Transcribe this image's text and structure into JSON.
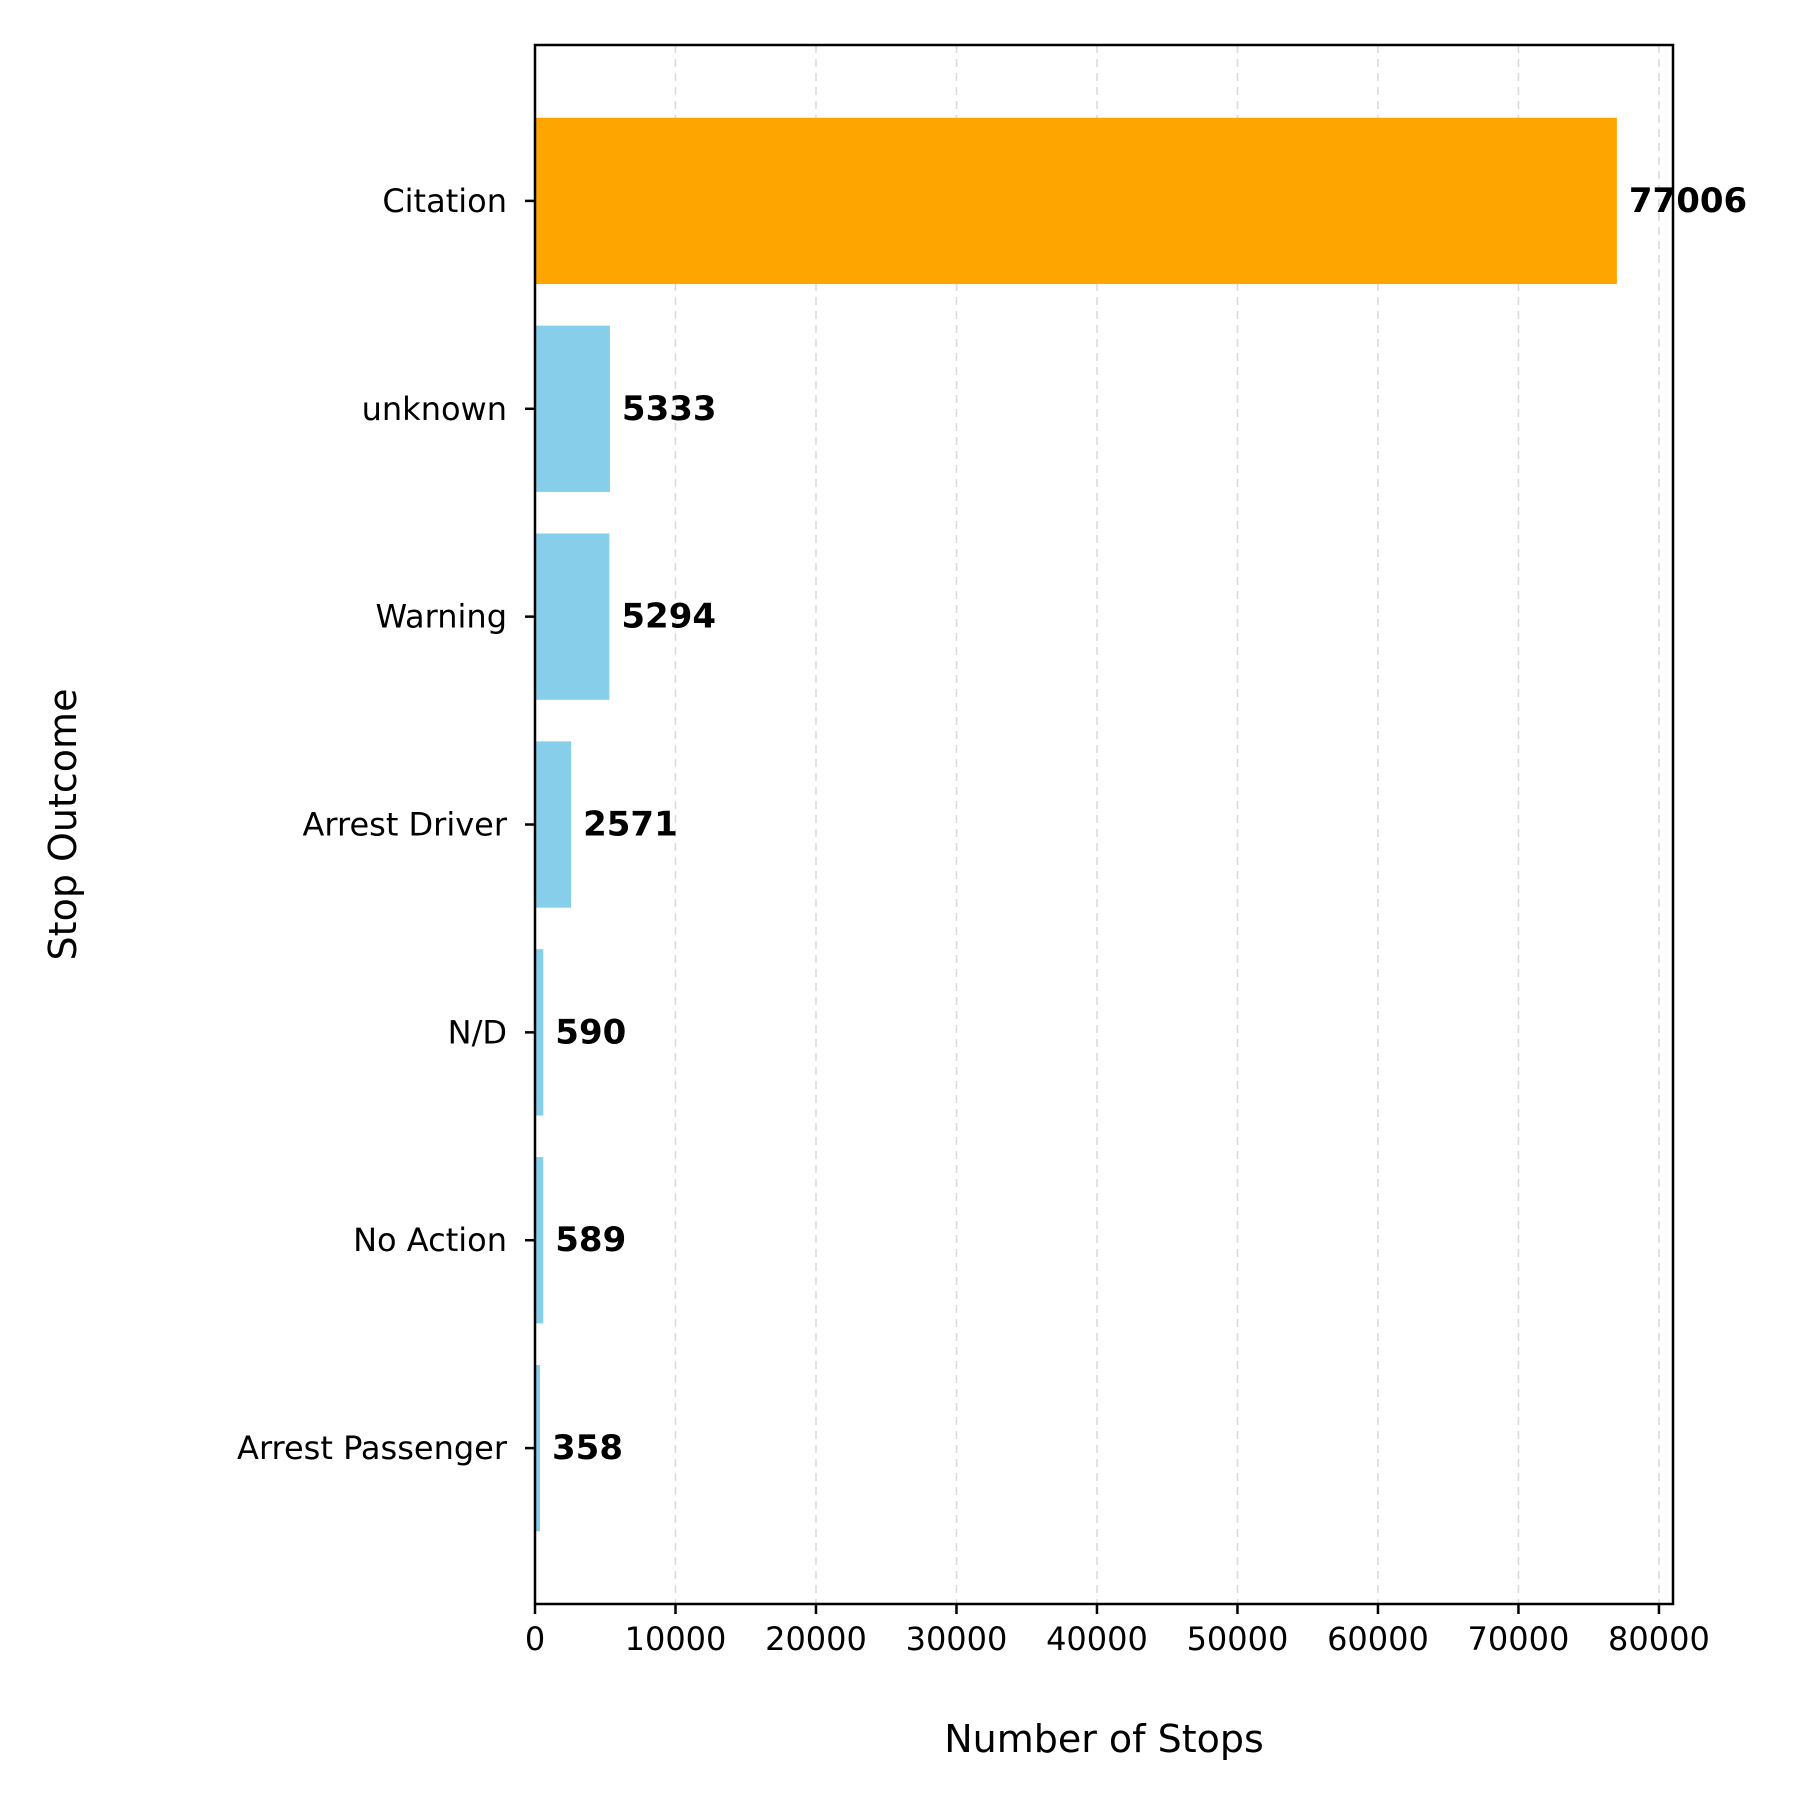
{
  "chart_data": {
    "type": "bar",
    "orientation": "horizontal",
    "categories": [
      "Citation",
      "unknown",
      "Warning",
      "Arrest Driver",
      "N/D",
      "No Action",
      "Arrest Passenger"
    ],
    "values": [
      77006,
      5333,
      5294,
      2571,
      590,
      589,
      358
    ],
    "data_labels": [
      "77006",
      "5333",
      "5294",
      "2571",
      "590",
      "589",
      "358"
    ],
    "bar_colors": [
      "#FFA500",
      "#87CEEB",
      "#87CEEB",
      "#87CEEB",
      "#87CEEB",
      "#87CEEB",
      "#87CEEB"
    ],
    "xlabel": "Number of Stops",
    "ylabel": "Stop Outcome",
    "xlim": [
      0,
      81000
    ],
    "xticks": [
      0,
      10000,
      20000,
      30000,
      40000,
      50000,
      60000,
      70000,
      80000
    ],
    "xtick_labels": [
      "0",
      "10000",
      "20000",
      "30000",
      "40000",
      "50000",
      "60000",
      "70000",
      "80000"
    ],
    "grid": "vertical dashed",
    "legend": "none"
  }
}
